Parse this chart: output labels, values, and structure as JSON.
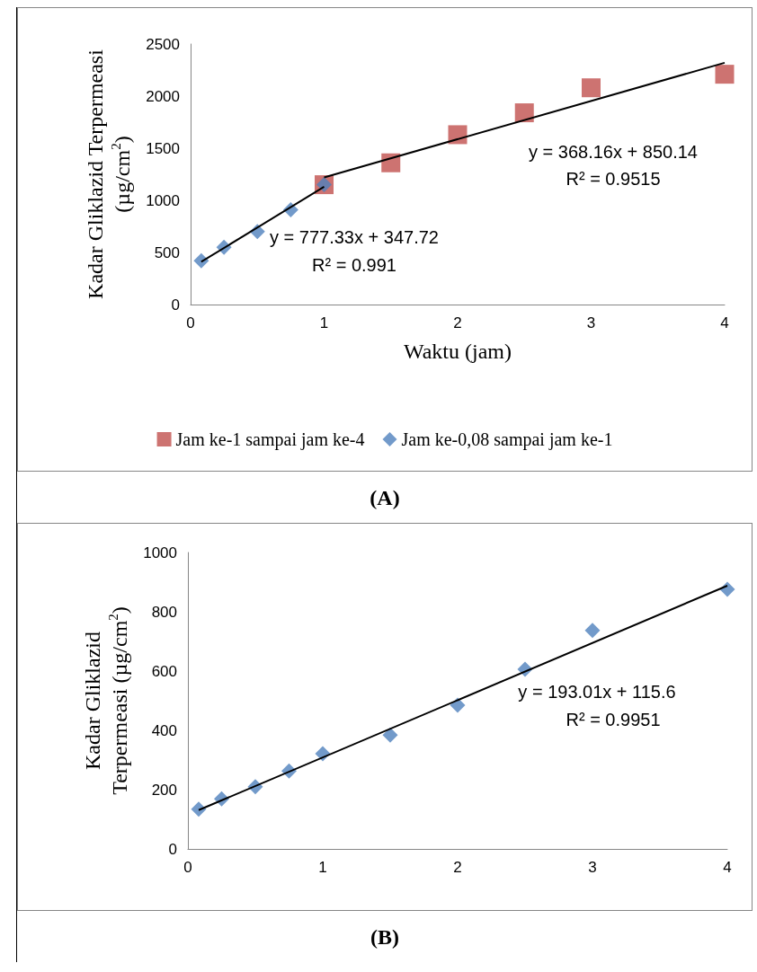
{
  "chart_data": [
    {
      "type": "scatter",
      "title": "(A)",
      "xlabel": "Waktu (jam)",
      "ylabel": "Kadar Gliklazid Terpermeasi (µg/cm$^{2}$)",
      "xlim": [
        0,
        4
      ],
      "xticks": [
        0,
        1,
        2,
        3,
        4
      ],
      "ylim": [
        0,
        2500
      ],
      "yticks": [
        0,
        500,
        1000,
        1500,
        2000,
        2500
      ],
      "grid": false,
      "legend": "bottom",
      "annotations": [
        "y = 777.33x + 347.72",
        "R² = 0.991",
        "y = 368.16x + 850.14",
        "R² = 0.9515"
      ],
      "series": [
        {
          "name": "Jam ke-1 sampai jam ke-4",
          "color": "#c0504d",
          "marker": "square",
          "x": [
            1,
            1.5,
            2,
            2.5,
            3,
            4
          ],
          "values": [
            1150,
            1360,
            1630,
            1840,
            2080,
            2210
          ]
        },
        {
          "name": "Jam ke-0,08 sampai jam ke-1",
          "color": "#4f81bd",
          "marker": "diamond",
          "x": [
            0.08,
            0.25,
            0.5,
            0.75,
            1
          ],
          "values": [
            420,
            550,
            700,
            910,
            1150
          ]
        },
        {
          "type": "line",
          "color": "#000000",
          "marker": "none",
          "x": [
            0.08,
            1
          ],
          "values": [
            410,
            1130
          ]
        },
        {
          "type": "line",
          "color": "#000000",
          "marker": "none",
          "x": [
            1,
            4
          ],
          "values": [
            1220,
            2320
          ]
        }
      ]
    },
    {
      "type": "scatter",
      "title": "(B)",
      "ylabel": "Kadar Gliklazid Terpermeasi (µg/cm$^{2}$)",
      "xlim": [
        0,
        4
      ],
      "xticks": [
        0,
        1,
        2,
        3,
        4
      ],
      "ylim": [
        0,
        1000
      ],
      "yticks": [
        0,
        200,
        400,
        600,
        800,
        1000
      ],
      "grid": false,
      "annotations": [
        "y = 193.01x + 115.6",
        "R² = 0.9951"
      ],
      "series": [
        {
          "color": "#4f81bd",
          "marker": "diamond",
          "x": [
            0.08,
            0.25,
            0.5,
            0.75,
            1,
            1.5,
            2,
            2.5,
            3,
            4
          ],
          "values": [
            134,
            169,
            210,
            263,
            321,
            384,
            485,
            606,
            737,
            876
          ]
        },
        {
          "type": "line",
          "color": "#000000",
          "marker": "none",
          "x": [
            0.08,
            4
          ],
          "values": [
            131,
            888
          ]
        }
      ]
    }
  ]
}
